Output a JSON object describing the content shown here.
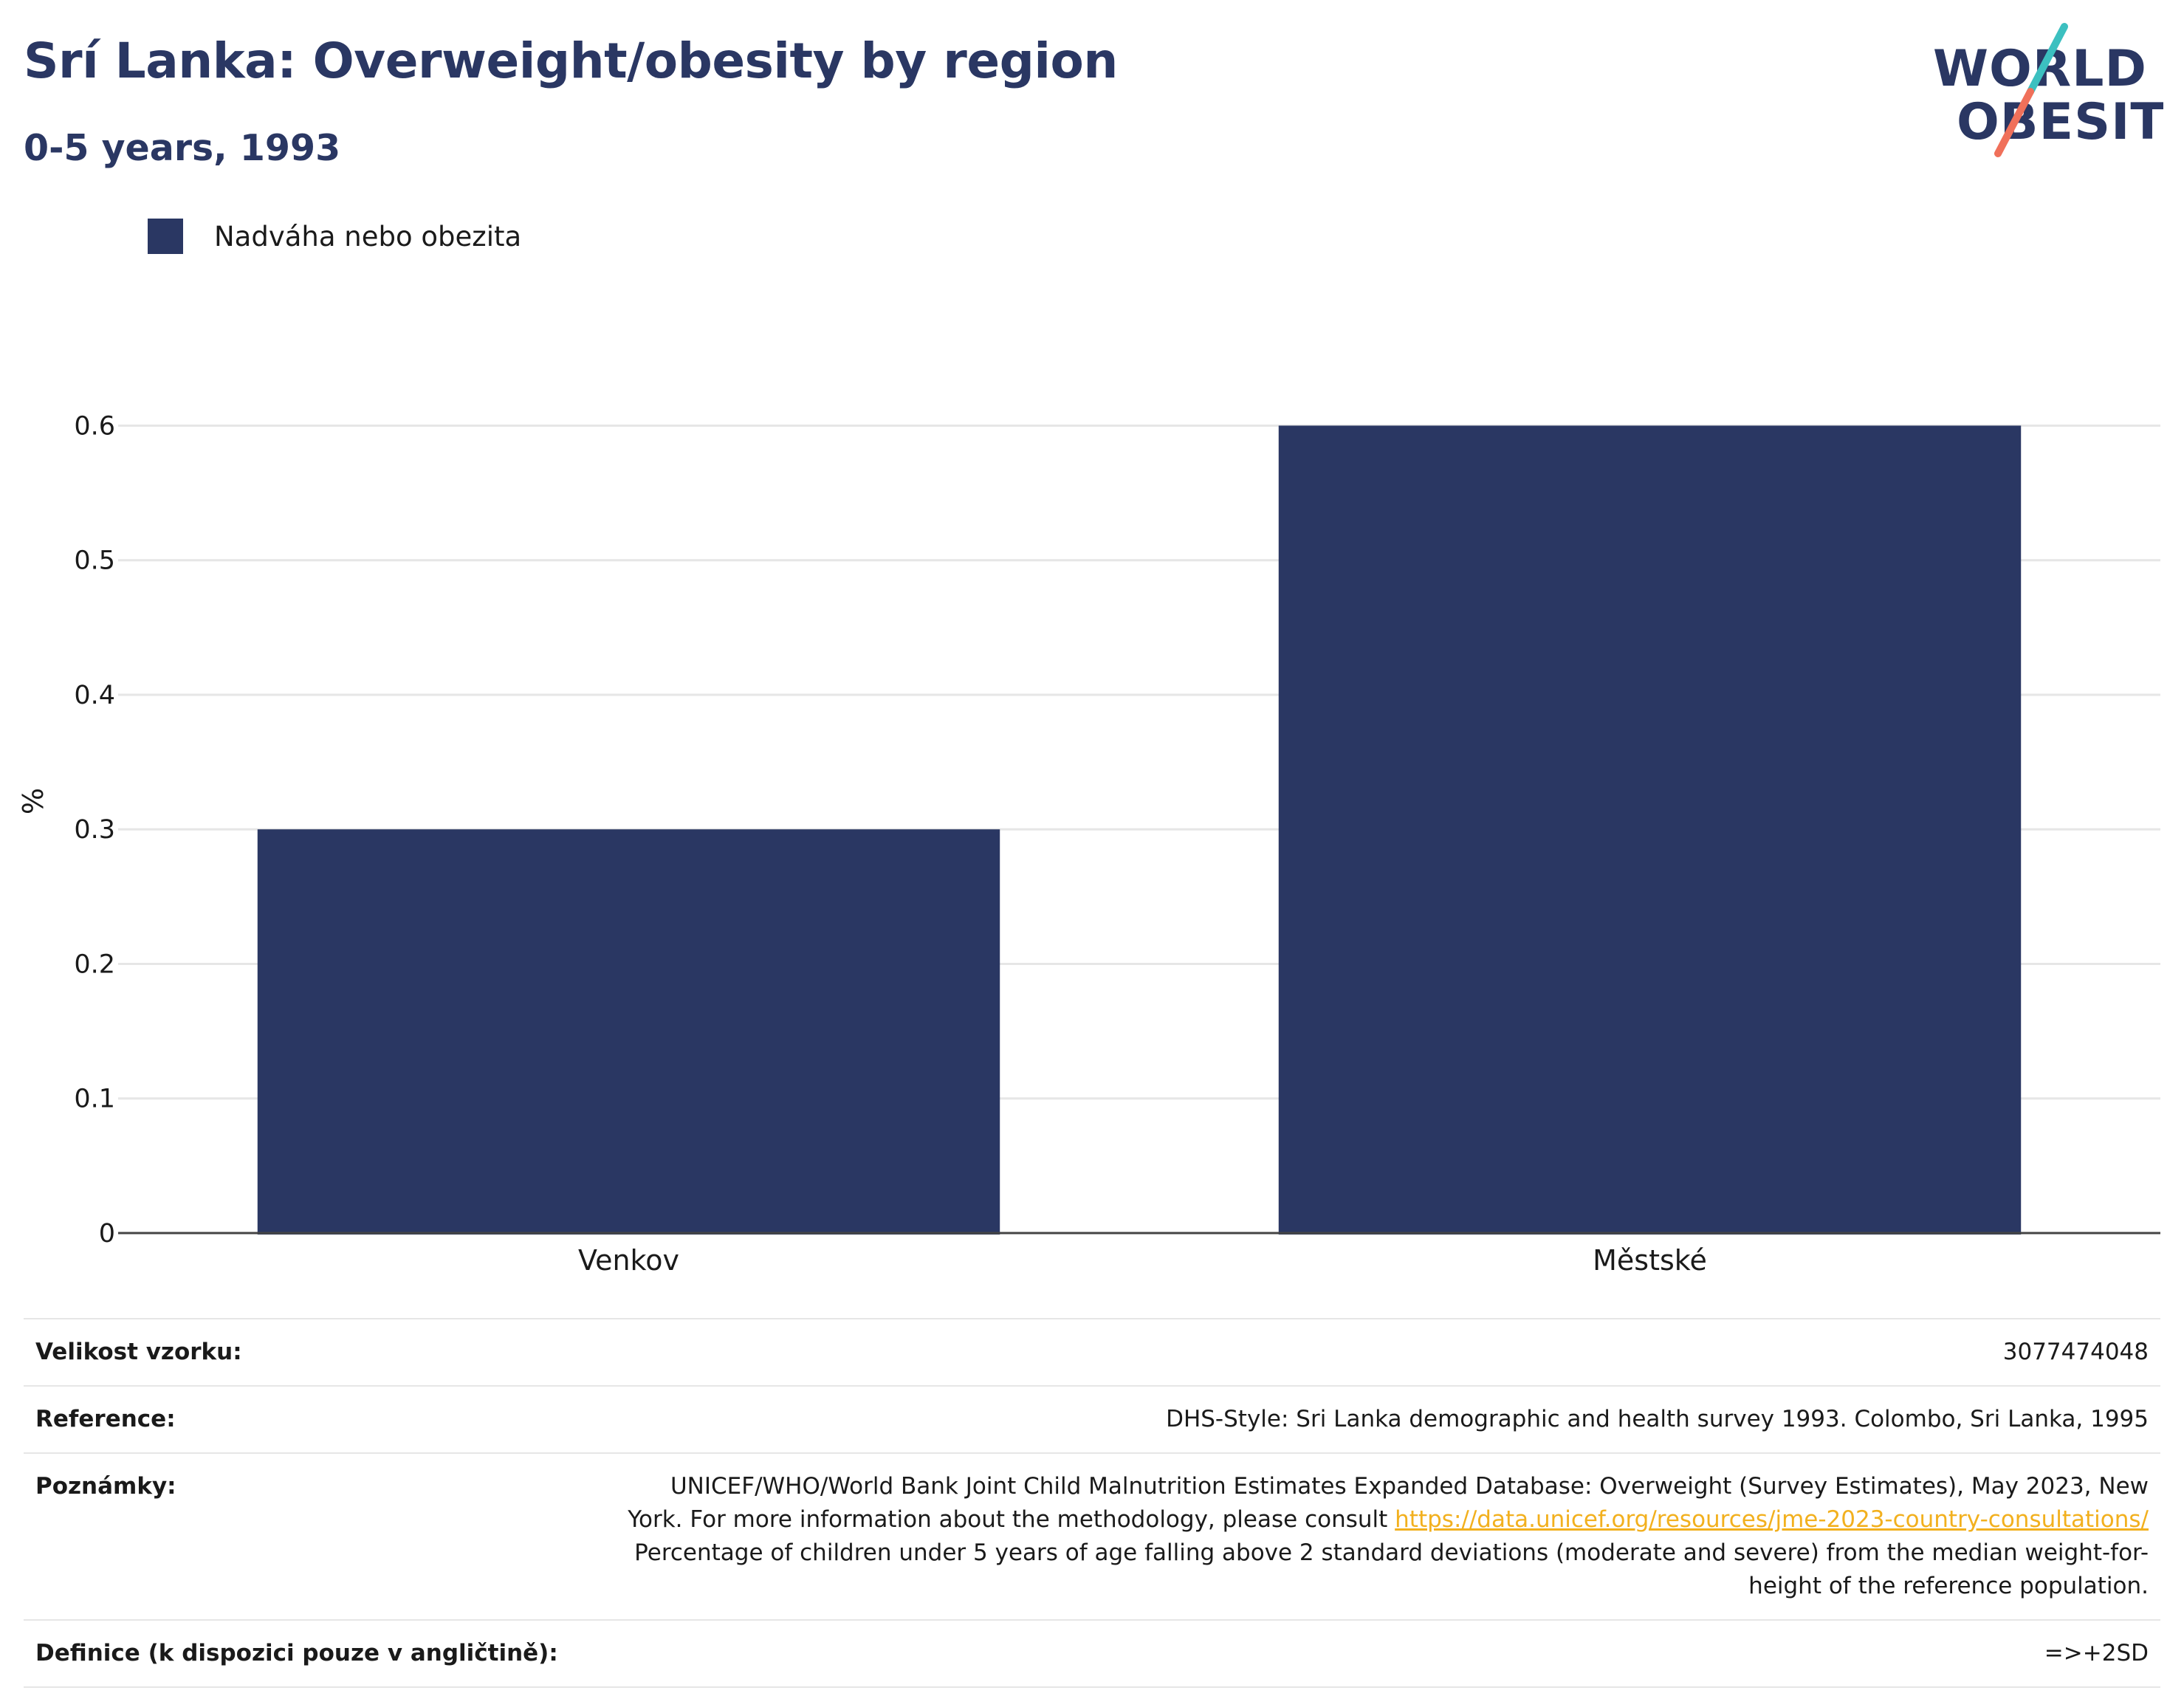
{
  "header": {
    "title": "Srí Lanka: Overweight/obesity by region",
    "subtitle": "0-5 years, 1993"
  },
  "logo": {
    "line1": "WORLD",
    "line2": "OBESITY",
    "colors": {
      "text": "#2a3763",
      "slash_teal": "#3cc0c0",
      "slash_coral": "#f0705a"
    }
  },
  "colors": {
    "bar": "#2a3763",
    "grid": "#e6e6e6",
    "axis": "#444444",
    "link": "#f2b01e"
  },
  "chart_data": {
    "type": "bar",
    "title": "Srí Lanka: Overweight/obesity by region",
    "subtitle": "0-5 years, 1993",
    "categories": [
      "Venkov",
      "Městské"
    ],
    "series": [
      {
        "name": "Nadváha nebo obezita",
        "values": [
          0.3,
          0.6
        ]
      }
    ],
    "xlabel": "",
    "ylabel": "%",
    "ylim": [
      0,
      0.62
    ],
    "yticks": [
      0,
      0.1,
      0.2,
      0.3,
      0.4,
      0.5,
      0.6
    ],
    "ytick_labels": [
      "0",
      "0.1",
      "0.2",
      "0.3",
      "0.4",
      "0.5",
      "0.6"
    ],
    "grid": true,
    "legend_position": "top-left"
  },
  "info": {
    "sample_label": "Velikost vzorku:",
    "sample_value": "3077474048",
    "reference_label": "Reference:",
    "reference_value": "DHS-Style: Sri Lanka demographic and health survey 1993. Colombo, Sri Lanka, 1995",
    "notes_label": "Poznámky:",
    "notes_text_1": "UNICEF/WHO/World Bank Joint Child Malnutrition Estimates Expanded Database: Overweight (Survey Estimates), May 2023, New York. For more information about the methodology, please consult ",
    "notes_link": "https://data.unicef.org/resources/jme-2023-country-consultations/",
    "notes_text_2": "Percentage of children under 5 years of age falling above 2 standard deviations (moderate and severe) from the median weight-for-height of the reference population.",
    "definition_label": "Definice (k dispozici pouze v angličtině):",
    "definition_value": "=>+2SD"
  }
}
